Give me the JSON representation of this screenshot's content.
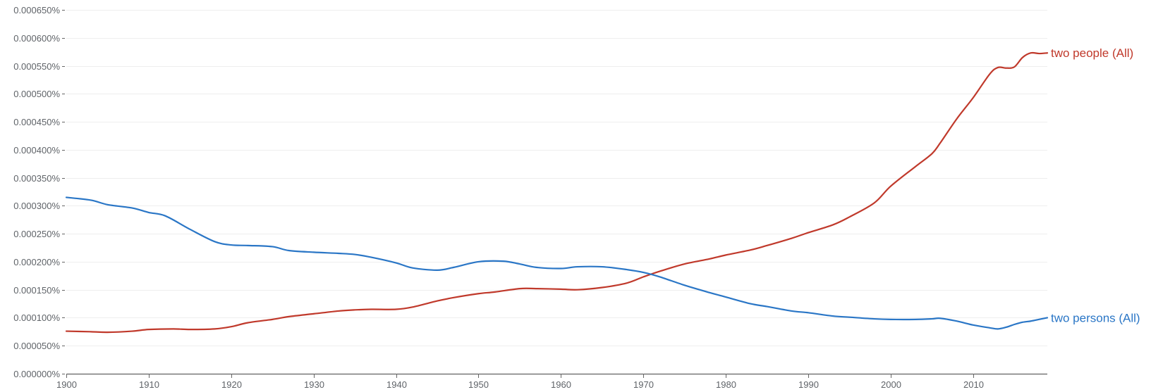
{
  "chart_data": {
    "type": "line",
    "title": "",
    "xlabel": "",
    "ylabel": "",
    "xlim": [
      1900,
      2019
    ],
    "ylim": [
      0,
      0.00065
    ],
    "grid": true,
    "legend": "inline-right",
    "x_ticks": [
      1900,
      1910,
      1920,
      1930,
      1940,
      1950,
      1960,
      1970,
      1980,
      1990,
      2000,
      2010
    ],
    "x_tick_labels": [
      "1900",
      "1910",
      "1920",
      "1930",
      "1940",
      "1950",
      "1960",
      "1970",
      "1980",
      "1990",
      "2000",
      "2010"
    ],
    "y_ticks": [
      0,
      5e-05,
      0.0001,
      0.00015,
      0.0002,
      0.00025,
      0.0003,
      0.00035,
      0.0004,
      0.00045,
      0.0005,
      0.00055,
      0.0006,
      0.00065
    ],
    "y_tick_labels": [
      "0.000000%",
      "0.000050%",
      "0.000100%",
      "0.000150%",
      "0.000200%",
      "0.000250%",
      "0.000300%",
      "0.000350%",
      "0.000400%",
      "0.000450%",
      "0.000500%",
      "0.000550%",
      "0.000600%",
      "0.000650%"
    ],
    "series": [
      {
        "name": "two people (All)",
        "color": "#c0392b",
        "x": [
          1900,
          1903,
          1905,
          1908,
          1910,
          1913,
          1915,
          1918,
          1920,
          1922,
          1925,
          1927,
          1930,
          1933,
          1935,
          1937,
          1940,
          1942,
          1945,
          1947,
          1950,
          1952,
          1955,
          1957,
          1960,
          1962,
          1965,
          1968,
          1970,
          1972,
          1975,
          1978,
          1980,
          1983,
          1985,
          1988,
          1990,
          1993,
          1995,
          1998,
          2000,
          2003,
          2005,
          2006,
          2008,
          2010,
          2012,
          2013,
          2014,
          2015,
          2016,
          2017,
          2018,
          2019
        ],
        "values": [
          7.6e-05,
          7.5e-05,
          7.4e-05,
          7.6e-05,
          7.9e-05,
          8e-05,
          7.9e-05,
          8e-05,
          8.4e-05,
          9.1e-05,
          9.7e-05,
          0.000102,
          0.000107,
          0.000112,
          0.000114,
          0.000115,
          0.000115,
          0.000119,
          0.00013,
          0.000136,
          0.000143,
          0.000146,
          0.000152,
          0.000152,
          0.000151,
          0.00015,
          0.000154,
          0.000162,
          0.000173,
          0.000183,
          0.000196,
          0.000205,
          0.000212,
          0.000221,
          0.000229,
          0.000242,
          0.000252,
          0.000266,
          0.00028,
          0.000305,
          0.000335,
          0.00037,
          0.000393,
          0.000412,
          0.000455,
          0.000493,
          0.000535,
          0.000547,
          0.000546,
          0.000548,
          0.000565,
          0.000573,
          0.000572,
          0.000573
        ]
      },
      {
        "name": "two persons (All)",
        "color": "#2a76c6",
        "x": [
          1900,
          1903,
          1905,
          1908,
          1910,
          1912,
          1915,
          1918,
          1920,
          1922,
          1925,
          1927,
          1930,
          1933,
          1935,
          1937,
          1940,
          1942,
          1945,
          1947,
          1950,
          1953,
          1955,
          1957,
          1960,
          1962,
          1965,
          1968,
          1970,
          1972,
          1975,
          1978,
          1980,
          1983,
          1985,
          1988,
          1990,
          1993,
          1995,
          1998,
          2000,
          2003,
          2005,
          2006,
          2008,
          2010,
          2012,
          2013,
          2014,
          2015,
          2016,
          2017,
          2018,
          2019
        ],
        "values": [
          0.000315,
          0.00031,
          0.000302,
          0.000296,
          0.000288,
          0.000282,
          0.000258,
          0.000236,
          0.00023,
          0.000229,
          0.000227,
          0.00022,
          0.000217,
          0.000215,
          0.000213,
          0.000208,
          0.000198,
          0.000189,
          0.000185,
          0.00019,
          0.0002,
          0.000201,
          0.000196,
          0.00019,
          0.000188,
          0.000191,
          0.000191,
          0.000186,
          0.000181,
          0.000173,
          0.000158,
          0.000145,
          0.000137,
          0.000125,
          0.00012,
          0.000112,
          0.000109,
          0.000103,
          0.000101,
          9.8e-05,
          9.7e-05,
          9.7e-05,
          9.8e-05,
          9.9e-05,
          9.4e-05,
          8.7e-05,
          8.2e-05,
          8e-05,
          8.3e-05,
          8.8e-05,
          9.2e-05,
          9.4e-05,
          9.7e-05,
          0.0001
        ]
      }
    ]
  }
}
